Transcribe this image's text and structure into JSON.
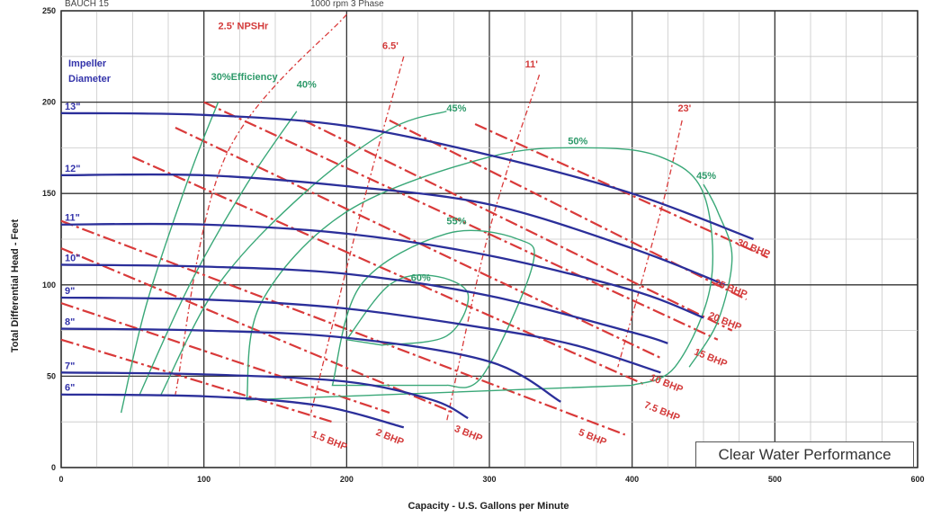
{
  "top_texts": [
    "BAUCH 15",
    "1000 rpm 3 Phase"
  ],
  "legend": {
    "impeller_title": [
      "Impeller",
      "Diameter"
    ]
  },
  "perf_label": "Clear Water Performance",
  "colors": {
    "impeller": "#2b2f9a",
    "efficiency": "#3aa878",
    "npsh": "#d93a3a",
    "bhp": "#d93a3a",
    "grid": "#333333"
  },
  "chart_data": {
    "type": "line",
    "xlabel": "Capacity - U.S. Gallons per Minute",
    "ylabel": "Total Differential Head - Feet",
    "xlim": [
      0,
      600
    ],
    "ylim": [
      0,
      250
    ],
    "x_ticks": [
      "0",
      "100",
      "200",
      "300",
      "400",
      "500",
      "600"
    ],
    "y_ticks": [
      "0",
      "50",
      "100",
      "150",
      "200",
      "250"
    ],
    "grid": true,
    "impeller_curves": [
      {
        "label": "13\"",
        "points": [
          [
            0,
            194
          ],
          [
            100,
            193
          ],
          [
            200,
            187
          ],
          [
            300,
            171
          ],
          [
            400,
            150
          ],
          [
            485,
            125
          ]
        ]
      },
      {
        "label": "12\"",
        "points": [
          [
            0,
            160
          ],
          [
            100,
            160
          ],
          [
            200,
            154
          ],
          [
            300,
            144
          ],
          [
            400,
            120
          ],
          [
            465,
            100
          ]
        ]
      },
      {
        "label": "11\"",
        "points": [
          [
            0,
            133
          ],
          [
            100,
            133
          ],
          [
            200,
            128
          ],
          [
            300,
            116
          ],
          [
            400,
            97
          ],
          [
            450,
            82
          ]
        ]
      },
      {
        "label": "10\"",
        "points": [
          [
            0,
            111
          ],
          [
            100,
            110
          ],
          [
            200,
            106
          ],
          [
            300,
            94
          ],
          [
            400,
            74
          ],
          [
            425,
            68
          ]
        ]
      },
      {
        "label": "9\"",
        "points": [
          [
            0,
            93
          ],
          [
            100,
            92
          ],
          [
            200,
            87
          ],
          [
            300,
            76
          ],
          [
            360,
            67
          ],
          [
            420,
            52
          ]
        ]
      },
      {
        "label": "8\"",
        "points": [
          [
            0,
            76
          ],
          [
            100,
            75
          ],
          [
            200,
            71
          ],
          [
            300,
            58
          ],
          [
            350,
            36
          ]
        ]
      },
      {
        "label": "7\"",
        "points": [
          [
            0,
            52
          ],
          [
            100,
            51
          ],
          [
            200,
            47
          ],
          [
            260,
            37
          ],
          [
            285,
            27
          ]
        ]
      },
      {
        "label": "6\"",
        "points": [
          [
            0,
            40
          ],
          [
            100,
            39
          ],
          [
            180,
            34
          ],
          [
            240,
            22
          ]
        ]
      }
    ],
    "efficiency_curves": [
      {
        "label": "30%",
        "points": [
          [
            42,
            30
          ],
          [
            60,
            90
          ],
          [
            90,
            160
          ],
          [
            110,
            200
          ]
        ]
      },
      {
        "label": "40%",
        "points": [
          [
            55,
            40
          ],
          [
            90,
            100
          ],
          [
            130,
            155
          ],
          [
            165,
            195
          ]
        ]
      },
      {
        "label": "45%",
        "points": [
          [
            70,
            40
          ],
          [
            110,
            100
          ],
          [
            170,
            150
          ],
          [
            230,
            185
          ],
          [
            270,
            195
          ]
        ]
      },
      {
        "label": "50%",
        "points": [
          [
            130,
            37
          ],
          [
            140,
            90
          ],
          [
            200,
            140
          ],
          [
            300,
            170
          ],
          [
            370,
            175
          ],
          [
            420,
            170
          ],
          [
            450,
            150
          ],
          [
            455,
            100
          ],
          [
            430,
            55
          ],
          [
            400,
            45
          ]
        ]
      },
      {
        "label": "55%",
        "points": [
          [
            190,
            45
          ],
          [
            210,
            100
          ],
          [
            270,
            128
          ],
          [
            320,
            125
          ],
          [
            330,
            110
          ],
          [
            295,
            50
          ],
          [
            270,
            45
          ]
        ]
      },
      {
        "label": "60%",
        "points": [
          [
            200,
            70
          ],
          [
            230,
            100
          ],
          [
            260,
            105
          ],
          [
            285,
            95
          ],
          [
            270,
            72
          ],
          [
            225,
            67
          ]
        ]
      },
      {
        "label": "45%",
        "points": [
          [
            450,
            155
          ],
          [
            460,
            140
          ],
          [
            470,
            115
          ],
          [
            460,
            80
          ],
          [
            440,
            55
          ]
        ]
      }
    ],
    "efficiency_labels": [
      {
        "text": "30%Efficiency",
        "x": 105,
        "y": 212
      },
      {
        "text": "40%",
        "x": 165,
        "y": 208
      },
      {
        "text": "45%",
        "x": 270,
        "y": 195
      },
      {
        "text": "50%",
        "x": 355,
        "y": 177
      },
      {
        "text": "45%",
        "x": 445,
        "y": 158
      },
      {
        "text": "55%",
        "x": 270,
        "y": 133
      },
      {
        "text": "60%",
        "x": 245,
        "y": 102
      }
    ],
    "npsh_curves": [
      {
        "label": "2.5' NPSHr",
        "points": [
          [
            200,
            248
          ],
          [
            115,
            170
          ],
          [
            80,
            40
          ]
        ]
      },
      {
        "label": "6.5'",
        "points": [
          [
            240,
            225
          ],
          [
            210,
            140
          ],
          [
            175,
            30
          ]
        ]
      },
      {
        "label": "11'",
        "points": [
          [
            335,
            215
          ],
          [
            300,
            130
          ],
          [
            270,
            25
          ]
        ]
      },
      {
        "label": "23'",
        "points": [
          [
            435,
            190
          ],
          [
            420,
            140
          ],
          [
            390,
            55
          ]
        ]
      }
    ],
    "npsh_labels": [
      {
        "text": "2.5' NPSHr",
        "x": 110,
        "y": 240
      },
      {
        "text": "6.5'",
        "x": 225,
        "y": 229
      },
      {
        "text": "11'",
        "x": 325,
        "y": 219
      },
      {
        "text": "23'",
        "x": 432,
        "y": 195
      }
    ],
    "bhp_lines": [
      {
        "label": "1.5 BHP",
        "points": [
          [
            0,
            70
          ],
          [
            190,
            25
          ]
        ]
      },
      {
        "label": "2 BHP",
        "points": [
          [
            0,
            90
          ],
          [
            230,
            30
          ]
        ]
      },
      {
        "label": "3 BHP",
        "points": [
          [
            0,
            120
          ],
          [
            275,
            30
          ]
        ]
      },
      {
        "label": "5 BHP",
        "points": [
          [
            0,
            135
          ],
          [
            395,
            18
          ]
        ]
      },
      {
        "label": "7.5 BHP",
        "points": [
          [
            50,
            170
          ],
          [
            410,
            45
          ]
        ]
      },
      {
        "label": "10 BHP",
        "points": [
          [
            80,
            186
          ],
          [
            420,
            60
          ]
        ]
      },
      {
        "label": "15 BHP",
        "points": [
          [
            100,
            200
          ],
          [
            460,
            70
          ]
        ]
      },
      {
        "label": "20 BHP",
        "points": [
          [
            170,
            190
          ],
          [
            470,
            75
          ]
        ]
      },
      {
        "label": "25 BHP",
        "points": [
          [
            230,
            190
          ],
          [
            480,
            92
          ]
        ]
      },
      {
        "label": "30 BHP",
        "points": [
          [
            290,
            188
          ],
          [
            495,
            115
          ]
        ]
      }
    ],
    "bhp_labels": [
      {
        "text": "1.5 BHP",
        "x": 175,
        "y": 17
      },
      {
        "text": "2 BHP",
        "x": 220,
        "y": 18
      },
      {
        "text": "3 BHP",
        "x": 275,
        "y": 20
      },
      {
        "text": "5 BHP",
        "x": 362,
        "y": 18
      },
      {
        "text": "7.5 BHP",
        "x": 408,
        "y": 33
      },
      {
        "text": "10 BHP",
        "x": 412,
        "y": 48
      },
      {
        "text": "15 BHP",
        "x": 443,
        "y": 62
      },
      {
        "text": "20 BHP",
        "x": 453,
        "y": 82
      },
      {
        "text": "25 BHP",
        "x": 457,
        "y": 100
      },
      {
        "text": "30 BHP",
        "x": 473,
        "y": 122
      }
    ]
  }
}
